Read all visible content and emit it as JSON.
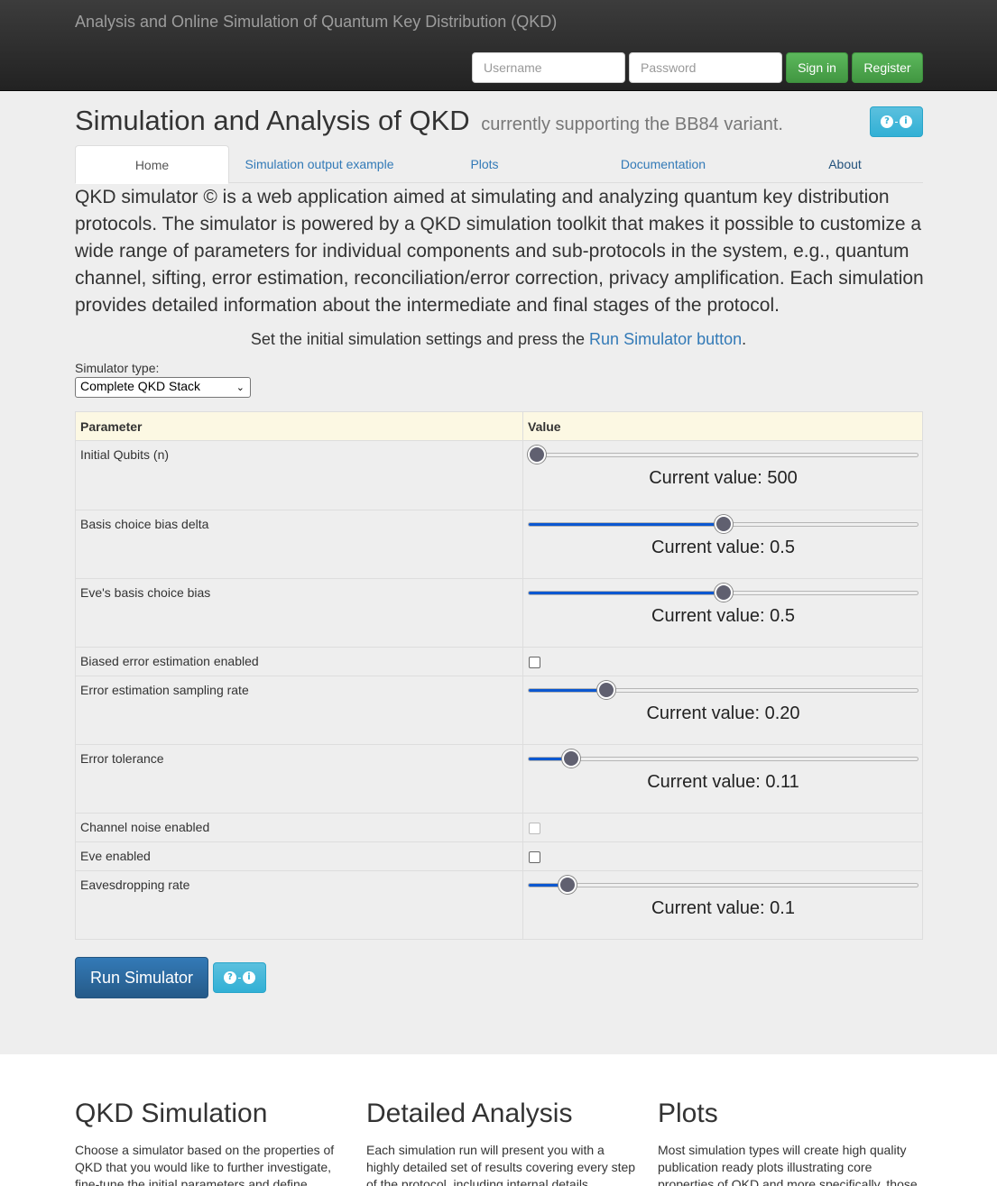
{
  "navbar": {
    "brand": "Analysis and Online Simulation of Quantum Key Distribution (QKD)",
    "username_placeholder": "Username",
    "password_placeholder": "Password",
    "signin_label": "Sign in",
    "register_label": "Register"
  },
  "header": {
    "title": "Simulation and Analysis of QKD",
    "subtitle": "currently supporting the BB84 variant."
  },
  "tabs": [
    "Home",
    "Simulation output example",
    "Plots",
    "Documentation",
    "About"
  ],
  "intro": {
    "lead": "QKD simulator © is a web application aimed at simulating and analyzing quantum key distribution protocols. The simulator is powered by a QKD simulation toolkit that makes it possible to customize a wide range of parameters for individual components and sub-protocols in the system, e.g., quantum channel, sifting, error estimation, reconciliation/error correction, privacy amplification. Each simulation provides detailed information about the intermediate and final stages of the protocol.",
    "instr_prefix": "Set the initial simulation settings and press the ",
    "instr_link": "Run Simulator button",
    "instr_suffix": "."
  },
  "simulator": {
    "label": "Simulator type:",
    "selected": "Complete QKD Stack"
  },
  "table": {
    "header_param": "Parameter",
    "header_value": "Value",
    "rows": [
      {
        "name": "Initial Qubits (n)",
        "type": "slider",
        "fraction": 0.02,
        "current": "Current value: 500"
      },
      {
        "name": "Basis choice bias delta",
        "type": "slider",
        "fraction": 0.5,
        "current": "Current value: 0.5"
      },
      {
        "name": "Eve's basis choice bias",
        "type": "slider",
        "fraction": 0.5,
        "current": "Current value: 0.5"
      },
      {
        "name": "Biased error estimation enabled",
        "type": "checkbox",
        "checked": false
      },
      {
        "name": "Error estimation sampling rate",
        "type": "slider",
        "fraction": 0.2,
        "current": "Current value: 0.20"
      },
      {
        "name": "Error tolerance",
        "type": "slider",
        "fraction": 0.11,
        "current": "Current value: 0.11"
      },
      {
        "name": "Channel noise enabled",
        "type": "checkbox",
        "checked": false,
        "disabled": true
      },
      {
        "name": "Eve enabled",
        "type": "checkbox",
        "checked": false
      },
      {
        "name": "Eavesdropping rate",
        "type": "slider",
        "fraction": 0.1,
        "current": "Current value: 0.1"
      }
    ]
  },
  "run_label": "Run Simulator",
  "features": [
    {
      "title": "QKD Simulation",
      "text": "Choose a simulator based on the properties of QKD that you would like to further investigate, fine-tune the initial parameters and define"
    },
    {
      "title": "Detailed Analysis",
      "text": "Each simulation run will present you with a highly detailed set of results covering every step of the protocol, including internal details"
    },
    {
      "title": "Plots",
      "text": "Most simulation types will create high quality publication ready plots illustrating core properties of QKD and more specifically, those"
    }
  ],
  "colors": {
    "accent": "#337ab7",
    "success": "#5cb85c",
    "info": "#5bc0de",
    "slider_fill": "#0b57d0",
    "table_head": "#fcf8e3"
  }
}
